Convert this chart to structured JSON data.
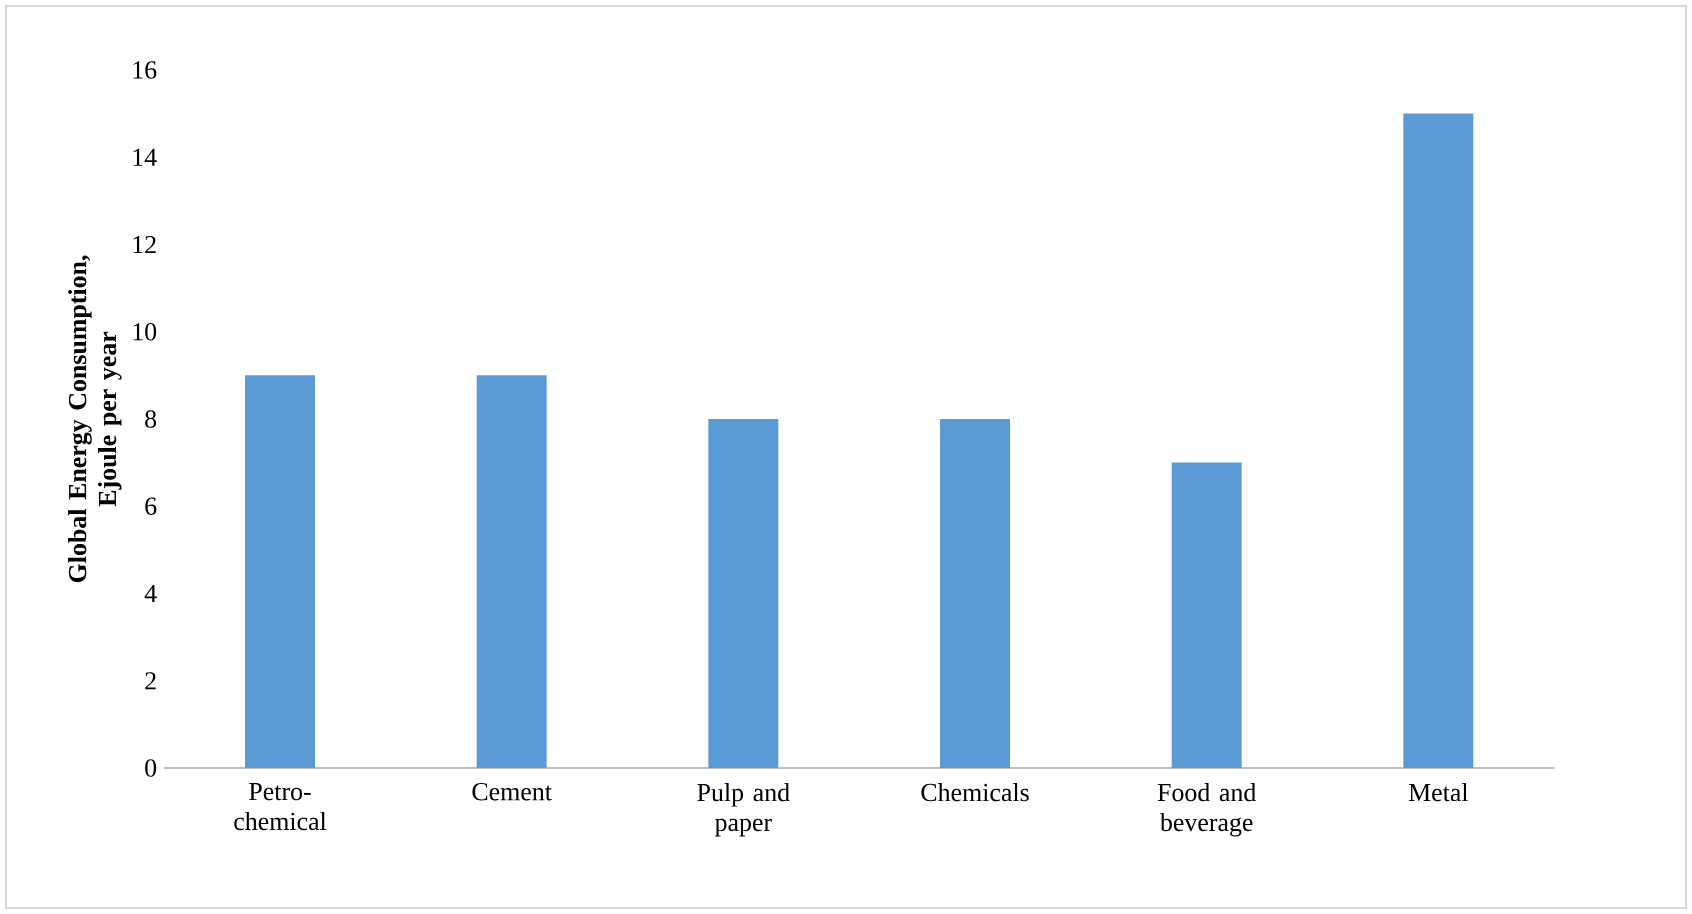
{
  "chart_data": {
    "type": "bar",
    "ylabel": "Global Energy Consumption, Ejoule per year",
    "categories": [
      "Petro-chemical",
      "Cement",
      "Pulp and paper",
      "Chemicals",
      "Food and beverage",
      "Metal"
    ],
    "values": [
      9,
      9,
      8,
      8,
      7,
      15
    ],
    "color": "#5b9bd5",
    "ylim": [
      0,
      16
    ],
    "yticks": [
      0,
      2,
      4,
      6,
      8,
      10,
      12,
      14,
      16
    ]
  }
}
